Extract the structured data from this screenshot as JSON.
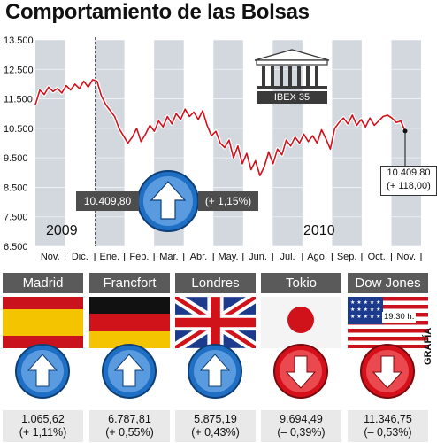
{
  "title": "Comportamiento de las Bolsas",
  "colors": {
    "series": "#d6101b",
    "band": "#d3d8df",
    "arrow_up": "#1f6fc4",
    "arrow_down": "#d6101b",
    "bar": "#4d4d4d"
  },
  "chart_data": {
    "type": "line",
    "ylim": [
      6500,
      13500
    ],
    "yticks": [
      "13.500",
      "12.500",
      "11.500",
      "10.500",
      "9.500",
      "8.500",
      "7.500",
      "6.500"
    ],
    "ytick_values": [
      13500,
      12500,
      11500,
      10500,
      9500,
      8500,
      7500,
      6500
    ],
    "months": [
      "Nov.",
      "Dic.",
      "Ene.",
      "Feb.",
      "Mar.",
      "Abr.",
      "May.",
      "Jun.",
      "Jul.",
      "Ago.",
      "Sep.",
      "Oct.",
      "Nov."
    ],
    "years": [
      "2009",
      "2010"
    ],
    "series": [
      {
        "values": [
          11300,
          11800,
          11650,
          11900,
          11750,
          11850,
          11700,
          11950,
          11800,
          12000,
          11850,
          12100,
          11900,
          12150,
          12100,
          11600,
          11300,
          11100,
          10900,
          10500,
          10250,
          10000,
          10200,
          10500,
          10050,
          10300,
          10600,
          10400,
          10750,
          10550,
          10900,
          10650,
          11000,
          10800,
          11150,
          10900,
          11050,
          10800,
          11100,
          10600,
          10250,
          10400,
          10000,
          9850,
          10100,
          9500,
          9900,
          9300,
          9650,
          9100,
          9400,
          8900,
          9200,
          9700,
          9300,
          9800,
          9600,
          10100,
          9900,
          10200,
          10000,
          10300,
          10050,
          10250,
          10000,
          10450,
          10150,
          9800,
          10500,
          10700,
          10850,
          10650,
          10950,
          10600,
          10800,
          10550,
          10850,
          10600,
          10750,
          10900,
          10950,
          10850,
          10700,
          10750,
          10409.8
        ]
      }
    ],
    "last_value": "10.409,80",
    "last_change": "(+ 118,00)"
  },
  "ibex_label": "IBEX 35",
  "summary": {
    "value": "10.409,80",
    "change": "(+ 1,15%)",
    "direction": "up"
  },
  "markets": [
    {
      "name": "Madrid",
      "value": "1.065,62",
      "change": "(+ 1,11%)",
      "direction": "up",
      "flag": "spain-flag"
    },
    {
      "name": "Francfort",
      "value": "6.787,81",
      "change": "(+ 0,55%)",
      "direction": "up",
      "flag": "germany-flag"
    },
    {
      "name": "Londres",
      "value": "5.875,19",
      "change": "(+ 0,43%)",
      "direction": "up",
      "flag": "uk-flag"
    },
    {
      "name": "Tokio",
      "value": "9.694,49",
      "change": "(– 0,39%)",
      "direction": "down",
      "flag": "japan-flag"
    },
    {
      "name": "Dow Jones",
      "value": "11.346,75",
      "change": "(– 0,53%)",
      "direction": "down",
      "flag": "usa-flag",
      "time": "19:30 h."
    }
  ],
  "credit": "GRAFÍA"
}
